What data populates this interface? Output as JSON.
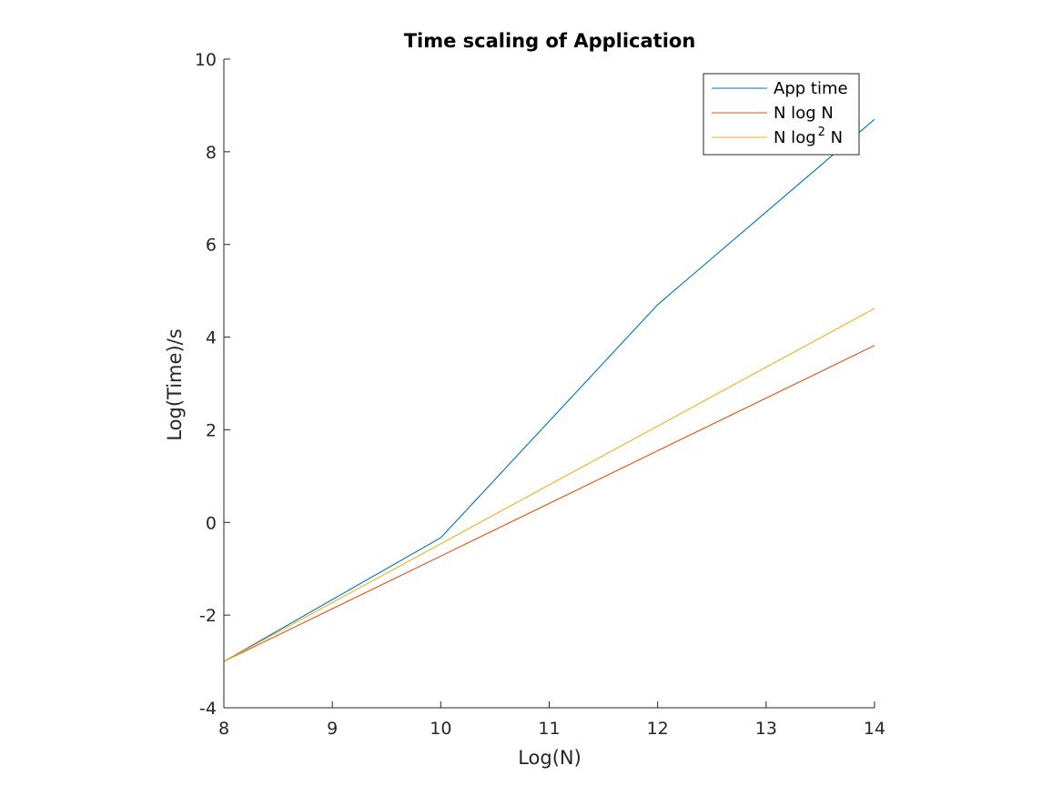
{
  "chart_data": {
    "type": "line",
    "title": "Time scaling of Application",
    "xlabel": "Log(N)",
    "ylabel": "Log(Time)/s",
    "xlim": [
      8,
      14
    ],
    "ylim": [
      -4,
      10
    ],
    "xticks": [
      8,
      9,
      10,
      11,
      12,
      13,
      14
    ],
    "yticks": [
      -4,
      -2,
      0,
      2,
      4,
      6,
      8,
      10
    ],
    "xtick_labels": [
      "8",
      "9",
      "10",
      "11",
      "12",
      "13",
      "14"
    ],
    "ytick_labels": [
      "-4",
      "-2",
      "0",
      "2",
      "4",
      "6",
      "8",
      "10"
    ],
    "grid": false,
    "legend_position": "top-right",
    "series": [
      {
        "name": "App time",
        "name_parts": [
          "App time",
          "",
          ""
        ],
        "color": "#0072BD",
        "x": [
          8,
          10,
          12,
          14
        ],
        "y": [
          -3.0,
          -0.33,
          4.7,
          8.7
        ]
      },
      {
        "name": "N log N",
        "name_parts": [
          "N log N",
          "",
          ""
        ],
        "color": "#D95319",
        "x": [
          8,
          14
        ],
        "y": [
          -3.0,
          3.82
        ]
      },
      {
        "name": "N log2 N",
        "name_parts": [
          "N log",
          "2",
          " N"
        ],
        "color": "#EDB120",
        "x": [
          8,
          14
        ],
        "y": [
          -3.0,
          4.62
        ]
      }
    ]
  }
}
